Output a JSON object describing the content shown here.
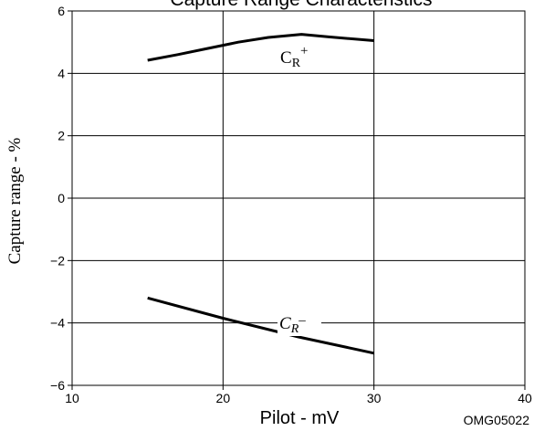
{
  "chart_data": {
    "type": "line",
    "title": "Capture Range Characteristics",
    "xlabel": "Pilot  -  mV",
    "ylabel": "Capture range  -  %",
    "footnote": "OMG05022",
    "xlim": [
      10,
      40
    ],
    "ylim": [
      -6,
      6
    ],
    "x_ticks": [
      "10",
      "20",
      "30",
      "40"
    ],
    "y_ticks": [
      "6",
      "4",
      "2",
      "0",
      "−2",
      "−4",
      "−6"
    ],
    "grid": true,
    "series": [
      {
        "name": "CR+",
        "label_main": "C",
        "label_sub": "R",
        "label_sup": "+",
        "x": [
          15,
          17,
          19,
          21,
          23,
          25.2,
          27,
          30
        ],
        "y": [
          4.42,
          4.6,
          4.8,
          5.0,
          5.15,
          5.25,
          5.17,
          5.05
        ]
      },
      {
        "name": "CR−",
        "label_main": "C",
        "label_sub": "R",
        "label_sup": "–",
        "x": [
          15,
          20,
          25,
          30
        ],
        "y": [
          -3.2,
          -3.85,
          -4.45,
          -4.97
        ]
      }
    ]
  }
}
